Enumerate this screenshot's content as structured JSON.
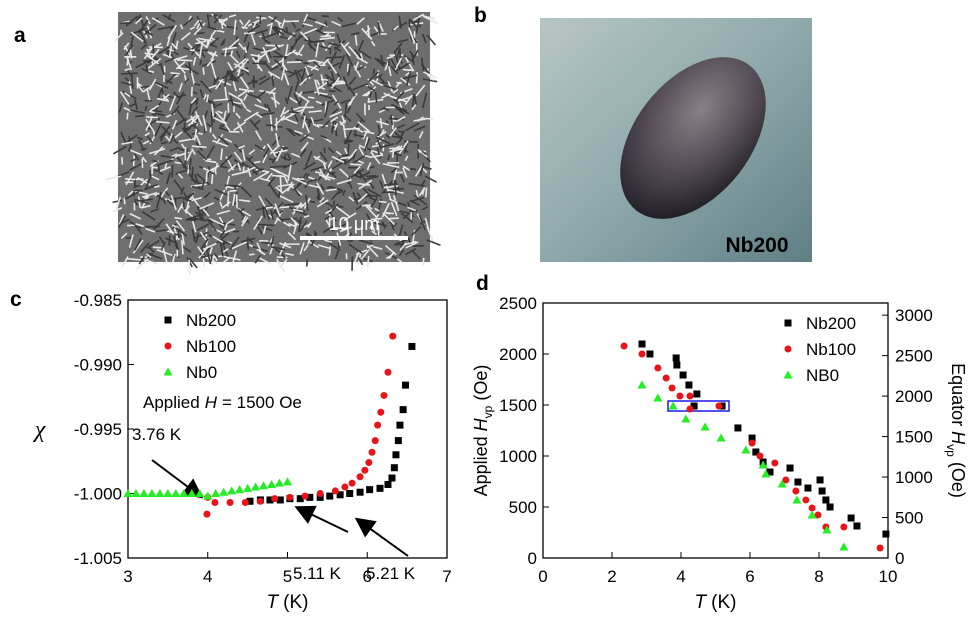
{
  "panels": {
    "a": {
      "label": "a",
      "scale_bar": "10 μm"
    },
    "b": {
      "label": "b",
      "sample": "Nb200"
    },
    "c": {
      "label": "c"
    },
    "d": {
      "label": "d"
    }
  },
  "chart_data": [
    {
      "type": "scatter",
      "x_label": [
        "T",
        "(K)"
      ],
      "y_label": "χ",
      "xlim": [
        3,
        7
      ],
      "xticks": [
        3,
        4,
        5,
        6,
        7
      ],
      "ylim": [
        -1.005,
        -0.985
      ],
      "yticks": [
        -0.985,
        {
          "value": -0.99,
          "label": "-0.990"
        },
        -0.995,
        {
          "value": -1,
          "label": "-1.000"
        },
        -1.005
      ],
      "legend": "top-left",
      "grid": false,
      "annotations": {
        "field": [
          "Applied",
          "H",
          "= 1500 Oe"
        ],
        "arrows": [
          "3.76 K",
          "5.11 K",
          "5.21 K"
        ]
      },
      "series": [
        {
          "name": "Nb200",
          "color": "#000000",
          "marker": "square",
          "x": [
            6.56,
            6.48,
            6.45,
            6.41,
            6.39,
            6.36,
            6.34,
            6.31,
            6.26,
            6.16,
            6.03,
            5.91,
            5.78,
            5.66,
            5.53,
            5.41,
            5.28,
            5.16,
            5.03,
            4.91,
            4.78,
            4.66,
            4.53
          ],
          "values": [
            -0.9886,
            -0.9916,
            -0.9935,
            -0.9947,
            -0.9959,
            -0.997,
            -0.998,
            -0.9988,
            -0.9993,
            -0.9996,
            -0.9997,
            -0.9999,
            -1.0,
            -1.0001,
            -1.0002,
            -1.0003,
            -1.0003,
            -1.0004,
            -1.0004,
            -1.0005,
            -1.0005,
            -1.0005,
            -1.0006
          ]
        },
        {
          "name": "Nb100",
          "color": "#e8141a",
          "marker": "circle",
          "x": [
            6.32,
            6.26,
            6.21,
            6.17,
            6.13,
            6.1,
            6.06,
            6.02,
            5.97,
            5.91,
            5.81,
            5.72,
            5.6,
            5.41,
            5.22,
            5.03,
            4.84,
            4.66,
            4.47,
            4.28,
            4.09,
            3.99,
            4.0
          ],
          "values": [
            -0.9878,
            -0.9906,
            -0.9924,
            -0.9937,
            -0.9947,
            -0.9959,
            -0.9968,
            -0.9976,
            -0.9982,
            -0.9987,
            -0.9992,
            -0.9995,
            -0.9998,
            -1.0,
            -1.0002,
            -1.0003,
            -1.0004,
            -1.0006,
            -1.0007,
            -1.0007,
            -1.0007,
            -1.0016,
            -1.0003
          ]
        },
        {
          "name": "Nb0",
          "color": "#22ee22",
          "marker": "triangle",
          "x": [
            3.0,
            3.1,
            3.2,
            3.3,
            3.4,
            3.5,
            3.6,
            3.7,
            3.8,
            3.9,
            4.0,
            4.1,
            4.2,
            4.3,
            4.4,
            4.5,
            4.6,
            4.7,
            4.8,
            4.9,
            5.0
          ],
          "values": [
            -1.0,
            -1.0,
            -1.0,
            -1.0,
            -1.0,
            -1.0,
            -1.0,
            -1.0,
            -1.0,
            -1.0,
            -1.0002,
            -1.0,
            -0.9999,
            -0.9998,
            -0.9997,
            -0.9996,
            -0.9995,
            -0.9994,
            -0.9993,
            -0.9992,
            -0.9991
          ]
        }
      ]
    },
    {
      "type": "scatter",
      "x_label": [
        "T",
        "(K)"
      ],
      "y_label": [
        "Applied",
        "H",
        "vp",
        "(Oe)"
      ],
      "y2_label": [
        "Equator",
        "H",
        "vp",
        "(Oe)"
      ],
      "xlim": [
        0,
        10
      ],
      "xticks": [
        0,
        2,
        4,
        6,
        8,
        10
      ],
      "ylim": [
        0,
        2500
      ],
      "yticks": [
        0,
        500,
        1000,
        1500,
        2000,
        2500
      ],
      "y2lim": [
        0,
        3150
      ],
      "y2ticks": [
        0,
        500,
        1000,
        1500,
        2000,
        2500,
        3000
      ],
      "legend": "top-right",
      "grid": false,
      "series": [
        {
          "name": "Nb200",
          "color": "#000000",
          "marker": "square",
          "x": [
            2.87,
            3.1,
            3.86,
            3.88,
            4.06,
            4.23,
            4.46,
            4.38,
            5.19,
            5.65,
            6.06,
            6.17,
            6.38,
            6.58,
            7.16,
            7.39,
            7.68,
            8.03,
            8.09,
            8.2,
            8.32,
            8.93,
            9.1,
            9.94
          ],
          "values": [
            2098,
            2000,
            1961,
            1892,
            1794,
            1696,
            1608,
            1490,
            1490,
            1275,
            1176,
            1039,
            941,
            843,
            882,
            745,
            686,
            765,
            657,
            569,
            500,
            392,
            314,
            235
          ]
        },
        {
          "name": "Nb100",
          "color": "#e8141a",
          "marker": "circle",
          "x": [
            2.35,
            2.87,
            3.33,
            3.57,
            3.74,
            3.97,
            4.26,
            4.26,
            5.1,
            6.06,
            6.29,
            6.72,
            7.04,
            7.33,
            7.62,
            7.8,
            7.97,
            8.2,
            8.72,
            9.77
          ],
          "values": [
            2078,
            2000,
            1863,
            1765,
            1667,
            1588,
            1588,
            1461,
            1490,
            1127,
            1000,
            931,
            765,
            657,
            569,
            490,
            422,
            304,
            304,
            98
          ]
        },
        {
          "name": "NB0",
          "color": "#22ee22",
          "marker": "triangle",
          "x": [
            2.87,
            3.33,
            3.77,
            4.14,
            4.7,
            5.16,
            5.88,
            6.38,
            6.46,
            6.93,
            7.36,
            7.8,
            8.23,
            8.72
          ],
          "values": [
            1696,
            1569,
            1490,
            1363,
            1284,
            1176,
            1059,
            912,
            824,
            725,
            569,
            422,
            275,
            108
          ]
        }
      ]
    }
  ]
}
